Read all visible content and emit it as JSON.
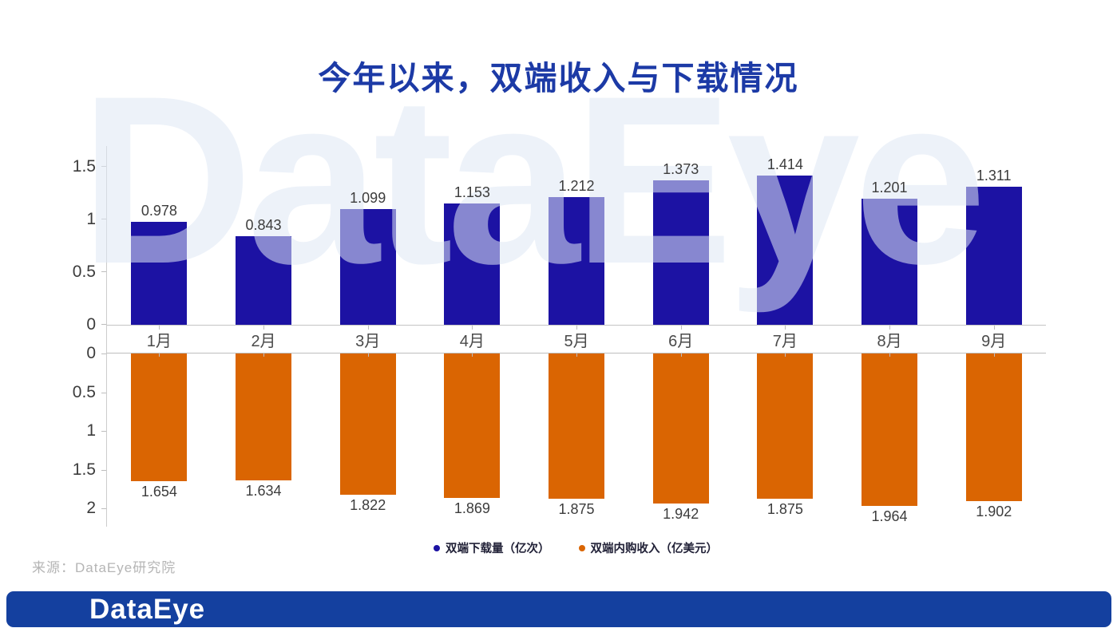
{
  "title": "今年以来，双端收入与下载情况",
  "watermark_text": "DataEye",
  "source_note": "来源：DataEye研究院",
  "footer": {
    "logo_text": "DataEye"
  },
  "colors": {
    "title": "#1c3aa6",
    "download_bar": "#1c12a3",
    "revenue_bar": "#da6502",
    "footer_bar": "#14409f",
    "axis_line": "#cccccc",
    "watermark": "#dfe8f5"
  },
  "legend": [
    {
      "label": "双端下载量（亿次）",
      "color": "#1c12a3"
    },
    {
      "label": "双端内购收入（亿美元）",
      "color": "#da6502"
    }
  ],
  "chart_data": {
    "type": "bar",
    "layout": "mirrored dual-panel vertical bars (downloads up, revenue down)",
    "title": "今年以来，双端收入与下载情况",
    "categories": [
      "1月",
      "2月",
      "3月",
      "4月",
      "5月",
      "6月",
      "7月",
      "8月",
      "9月"
    ],
    "series": [
      {
        "name": "双端下载量（亿次）",
        "color": "#1c12a3",
        "direction": "up",
        "axis_ticks": [
          0,
          0.5,
          1,
          1.5
        ],
        "axis_range": [
          0,
          1.7
        ],
        "values": [
          0.978,
          0.843,
          1.099,
          1.153,
          1.212,
          1.373,
          1.414,
          1.201,
          1.311
        ]
      },
      {
        "name": "双端内购收入（亿美元）",
        "color": "#da6502",
        "direction": "down",
        "axis_ticks": [
          0,
          0.5,
          1,
          1.5,
          2
        ],
        "axis_range": [
          0,
          2.24
        ],
        "values": [
          1.654,
          1.634,
          1.822,
          1.869,
          1.875,
          1.942,
          1.875,
          1.964,
          1.902
        ]
      }
    ],
    "grid": false,
    "value_labels": true,
    "legend_position": "bottom"
  }
}
